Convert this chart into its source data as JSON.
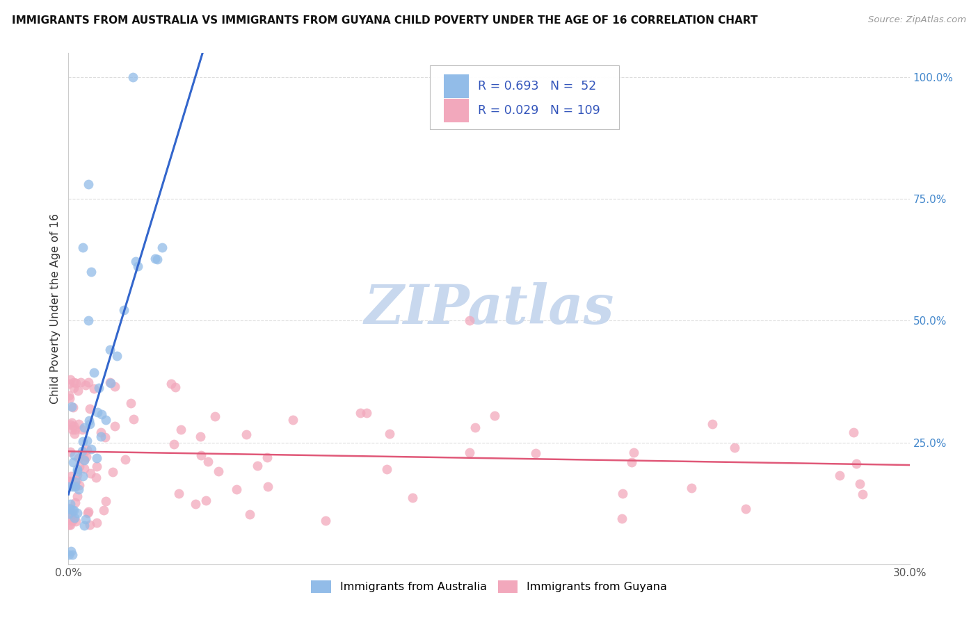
{
  "title": "IMMIGRANTS FROM AUSTRALIA VS IMMIGRANTS FROM GUYANA CHILD POVERTY UNDER THE AGE OF 16 CORRELATION CHART",
  "source": "Source: ZipAtlas.com",
  "ylabel": "Child Poverty Under the Age of 16",
  "xlim": [
    0.0,
    0.3
  ],
  "ylim": [
    0.0,
    1.05
  ],
  "ytick_values": [
    0.25,
    0.5,
    0.75,
    1.0
  ],
  "australia_color": "#92bce8",
  "guyana_color": "#f2a8bc",
  "australia_line_color": "#3366cc",
  "guyana_line_color": "#e05878",
  "R_australia": 0.693,
  "N_australia": 52,
  "R_guyana": 0.029,
  "N_guyana": 109,
  "legend_text_color": "#3355bb",
  "legend_label_color": "#333333",
  "watermark_color": "#c8d8ee",
  "background_color": "#ffffff",
  "grid_color": "#dddddd",
  "spine_color": "#cccccc",
  "title_color": "#111111",
  "source_color": "#999999",
  "ylabel_color": "#333333",
  "tick_color": "#555555",
  "right_tick_color": "#4488cc",
  "aus_scatter_seed": 77,
  "guy_scatter_seed": 88
}
